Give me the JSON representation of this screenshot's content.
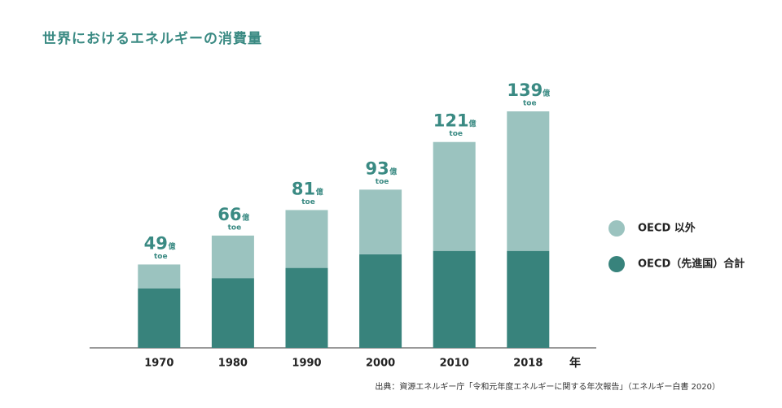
{
  "chart_data": {
    "type": "stacked_bar",
    "title": "世界におけるエネルギーの消費量",
    "categories": [
      "1970",
      "1980",
      "1990",
      "2000",
      "2010",
      "2018"
    ],
    "x_axis_label": "年",
    "series": [
      {
        "name": "OECD（先進国）合計",
        "color": "#38837c",
        "values": [
          35,
          41,
          47,
          55,
          57,
          57
        ]
      },
      {
        "name": "OECD 以外",
        "color": "#9bc3bf",
        "values": [
          14,
          25,
          34,
          38,
          64,
          82
        ]
      }
    ],
    "total_labels": [
      49,
      66,
      81,
      93,
      121,
      139
    ],
    "unit_label": "億",
    "unit_sub_label": "toe",
    "ylim": [
      0,
      150
    ],
    "legend_position": "right",
    "source": "出典：資源エネルギー庁「令和元年度エネルギーに関する年次報告」（エネルギー白書 2020）"
  }
}
